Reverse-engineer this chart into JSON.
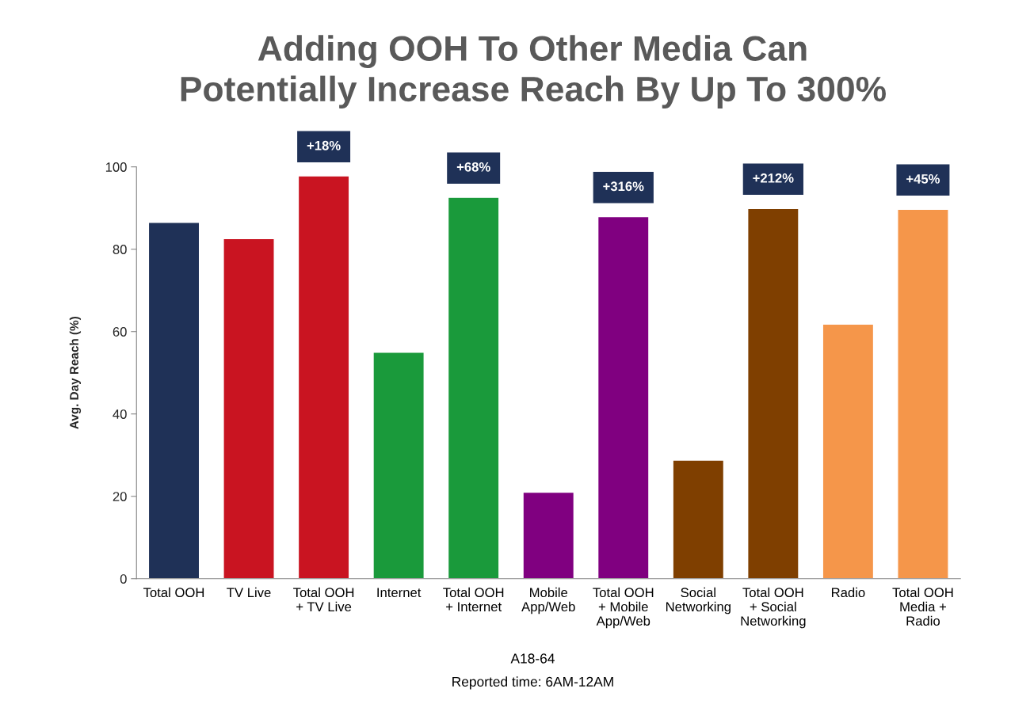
{
  "chart_data": {
    "type": "bar",
    "title": "Adding OOH To Other Media Can\nPotentially Increase Reach By Up To 300%",
    "ylabel": "Avg. Day Reach (%)",
    "categories": [
      "Total OOH",
      "TV Live",
      "Total OOH\n+ TV Live",
      "Internet",
      "Total OOH\n+ Internet",
      "Mobile\nApp/Web",
      "Total OOH\n+ Mobile\nApp/Web",
      "Social\nNetworking",
      "Total OOH\n+ Social\nNetworking",
      "Radio",
      "Total OOH\nMedia +\nRadio"
    ],
    "values": [
      86.5,
      82.6,
      97.8,
      55.0,
      92.6,
      21.0,
      87.9,
      28.8,
      89.9,
      61.8,
      89.7
    ],
    "colors": [
      "#1f3157",
      "#c91421",
      "#c91421",
      "#1a9a3b",
      "#1a9a3b",
      "#800080",
      "#800080",
      "#7f3f00",
      "#7f3f00",
      "#f5964a",
      "#f5964a"
    ],
    "ylim": [
      0,
      100
    ],
    "yticks": [
      0,
      20,
      40,
      60,
      80,
      100
    ],
    "grid": false,
    "annotations": [
      {
        "text": "+18%",
        "x": "Total OOH\n+ TV Live",
        "y": 97.8
      },
      {
        "text": "+68%",
        "x": "Total OOH\n+ Internet",
        "y": 92.6
      },
      {
        "text": "+316%",
        "x": "Total OOH\n+ Mobile\nApp/Web",
        "y": 87.9
      },
      {
        "text": "+212%",
        "x": "Total OOH\n+ Social\nNetworking",
        "y": 89.9
      },
      {
        "text": "+45%",
        "x": "Total OOH\nMedia +\nRadio",
        "y": 89.7
      },
      "A18-64",
      "Reported time: 6AM-12AM"
    ]
  }
}
